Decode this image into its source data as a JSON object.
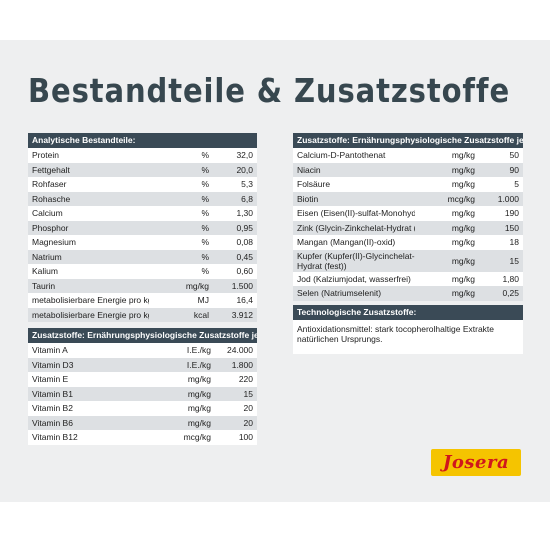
{
  "title": "Bestandteile & Zusatzstoffe",
  "logo_text": "Josera",
  "colors": {
    "header": "#3a4a56",
    "title": "#37474f",
    "stripe": "#dde0e3",
    "logo_bg": "#f5c400",
    "logo_fg": "#d0161c"
  },
  "analytische": {
    "header": "Analytische Bestandteile:",
    "rows": [
      {
        "name": "Protein",
        "unit": "%",
        "value": "32,0"
      },
      {
        "name": "Fettgehalt",
        "unit": "%",
        "value": "20,0"
      },
      {
        "name": "Rohfaser",
        "unit": "%",
        "value": "5,3"
      },
      {
        "name": "Rohasche",
        "unit": "%",
        "value": "6,8"
      },
      {
        "name": "Calcium",
        "unit": "%",
        "value": "1,30"
      },
      {
        "name": "Phosphor",
        "unit": "%",
        "value": "0,95"
      },
      {
        "name": "Magnesium",
        "unit": "%",
        "value": "0,08"
      },
      {
        "name": "Natrium",
        "unit": "%",
        "value": "0,45"
      },
      {
        "name": "Kalium",
        "unit": "%",
        "value": "0,60"
      },
      {
        "name": "Taurin",
        "unit": "mg/kg",
        "value": "1.500"
      },
      {
        "name": "metabolisierbare Energie pro kg",
        "unit": "MJ",
        "value": "16,4"
      },
      {
        "name": "metabolisierbare Energie pro kg",
        "unit": "kcal",
        "value": "3.912"
      }
    ]
  },
  "vitamine": {
    "header": "Zusatzstoffe: Ernährungsphysiologische Zusatzstoffe je kg:",
    "rows": [
      {
        "name": "Vitamin A",
        "unit": "I.E./kg",
        "value": "24.000"
      },
      {
        "name": "Vitamin D3",
        "unit": "I.E./kg",
        "value": "1.800"
      },
      {
        "name": "Vitamin E",
        "unit": "mg/kg",
        "value": "220"
      },
      {
        "name": "Vitamin B1",
        "unit": "mg/kg",
        "value": "15"
      },
      {
        "name": "Vitamin B2",
        "unit": "mg/kg",
        "value": "20"
      },
      {
        "name": "Vitamin B6",
        "unit": "mg/kg",
        "value": "20"
      },
      {
        "name": "Vitamin B12",
        "unit": "mcg/kg",
        "value": "100"
      }
    ]
  },
  "spuren": {
    "header": "Zusatzstoffe: Ernährungsphysiologische Zusatzstoffe je kg:",
    "rows": [
      {
        "name": "Calcium-D-Pantothenat",
        "unit": "mg/kg",
        "value": "50"
      },
      {
        "name": "Niacin",
        "unit": "mg/kg",
        "value": "90"
      },
      {
        "name": "Folsäure",
        "unit": "mg/kg",
        "value": "5"
      },
      {
        "name": "Biotin",
        "unit": "mcg/kg",
        "value": "1.000"
      },
      {
        "name": "Eisen (Eisen(II)-sulfat-Monohydrat)",
        "unit": "mg/kg",
        "value": "190"
      },
      {
        "name": "Zink (Glycin-Zinkchelat-Hydrat (fest))",
        "unit": "mg/kg",
        "value": "150"
      },
      {
        "name": "Mangan (Mangan(II)-oxid)",
        "unit": "mg/kg",
        "value": "18"
      },
      {
        "name": "Kupfer (Kupfer(II)-Glycinchelat-Hydrat (fest))",
        "unit": "mg/kg",
        "value": "15",
        "tall": true
      },
      {
        "name": "Jod (Kalziumjodat, wasserfrei)",
        "unit": "mg/kg",
        "value": "1,80"
      },
      {
        "name": "Selen (Natriumselenit)",
        "unit": "mg/kg",
        "value": "0,25"
      }
    ]
  },
  "technologisch": {
    "header": "Technologische Zusatzstoffe:",
    "text": "Antioxidationsmittel: stark tocopherolhaltige Extrakte natürlichen Ursprungs."
  }
}
